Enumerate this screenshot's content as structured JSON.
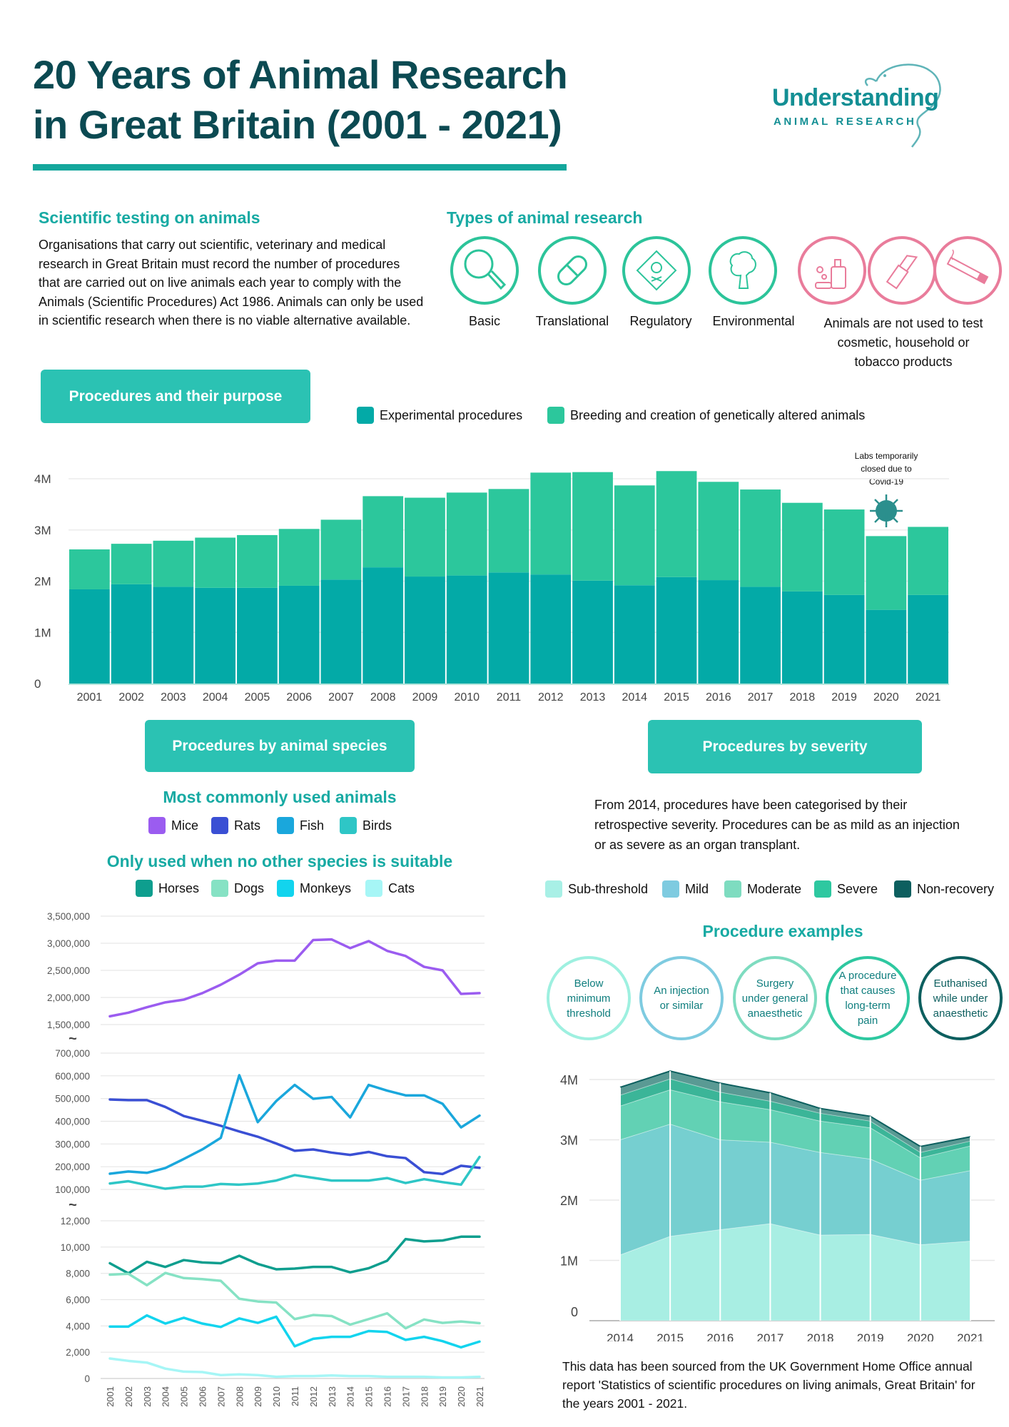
{
  "header": {
    "title_line1": "20 Years of Animal Research",
    "title_line2": "in Great Britain (2001 - 2021)",
    "logo_main": "Understanding",
    "logo_sub": "ANIMAL RESEARCH"
  },
  "intro": {
    "heading": "Scientific testing on animals",
    "text": "Organisations that carry out scientific, veterinary and medical research in Great Britain must record the number of procedures that are carried out on live animals each year to comply with the Animals (Scientific Procedures) Act 1986. Animals can only be used in scientific research when there is no viable alternative available."
  },
  "types": {
    "heading": "Types of animal research",
    "items": [
      {
        "label": "Basic",
        "icon": "magnifying-glass"
      },
      {
        "label": "Translational",
        "icon": "pill-capsule"
      },
      {
        "label": "Regulatory",
        "icon": "toxic-hazard"
      },
      {
        "label": "Environmental",
        "icon": "tree"
      }
    ],
    "not_used_text": "Animals are not used to test cosmetic, household or tobacco products",
    "not_used_icons": [
      "cosmetics-bottle",
      "lipstick",
      "cigarette"
    ],
    "colors": {
      "used": "#2cc49a",
      "not_used": "#e97c9b"
    }
  },
  "purpose": {
    "button": "Procedures and their purpose",
    "legend": [
      {
        "label": "Experimental procedures",
        "color": "#03aaa7"
      },
      {
        "label": "Breeding and creation of genetically altered animals",
        "color": "#2cc79c"
      }
    ],
    "annotation": [
      "Labs temporarily",
      "closed due to",
      "Covid-19"
    ],
    "annotation_icon": "virus"
  },
  "species": {
    "button": "Procedures by animal species",
    "common_heading": "Most commonly used animals",
    "common_legend": [
      {
        "label": "Mice",
        "color": "#9b5cf0"
      },
      {
        "label": "Rats",
        "color": "#3a4fd4"
      },
      {
        "label": "Fish",
        "color": "#1aa7dc"
      },
      {
        "label": "Birds",
        "color": "#2ec6c6"
      }
    ],
    "rare_heading": "Only used when no other species is suitable",
    "rare_legend": [
      {
        "label": "Horses",
        "color": "#0e9e8e"
      },
      {
        "label": "Dogs",
        "color": "#86e2c4"
      },
      {
        "label": "Monkeys",
        "color": "#12d4ee"
      },
      {
        "label": "Cats",
        "color": "#a6f6f6"
      }
    ]
  },
  "severity": {
    "button": "Procedures by severity",
    "text": "From 2014, procedures have been categorised by their retrospective severity. Procedures can be as mild as an injection or as severe as an organ transplant.",
    "legend": [
      {
        "label": "Sub-threshold",
        "color": "#a8f0e6"
      },
      {
        "label": "Mild",
        "color": "#7ecbe0"
      },
      {
        "label": "Moderate",
        "color": "#7edcc0"
      },
      {
        "label": "Severe",
        "color": "#2ec8a0"
      },
      {
        "label": "Non-recovery",
        "color": "#0d5f5f"
      }
    ],
    "examples_heading": "Procedure examples",
    "examples": [
      {
        "text": "Below minimum threshold",
        "color": "#9ef0e0"
      },
      {
        "text": "An injection or similar",
        "color": "#7ecbe0"
      },
      {
        "text": "Surgery under general anaesthetic",
        "color": "#7edcc0"
      },
      {
        "text": "A procedure that causes long-term pain",
        "color": "#2ec8a0"
      },
      {
        "text": "Euthanised while under anaesthetic",
        "color": "#0d5f5f"
      }
    ]
  },
  "source": "This data has been sourced from the UK Government Home Office annual report 'Statistics of scientific procedures on living animals, Great Britain' for the years 2001 - 2021.",
  "chart_data": [
    {
      "type": "bar",
      "stacked": true,
      "categories": [
        "2001",
        "2002",
        "2003",
        "2004",
        "2005",
        "2006",
        "2007",
        "2008",
        "2009",
        "2010",
        "2011",
        "2012",
        "2013",
        "2014",
        "2015",
        "2016",
        "2017",
        "2018",
        "2019",
        "2020",
        "2021"
      ],
      "ytick_labels": [
        "0",
        "1M",
        "2M",
        "3M",
        "4M"
      ],
      "yticks": [
        0,
        1000000,
        2000000,
        3000000,
        4000000
      ],
      "ylim": [
        0,
        4300000
      ],
      "grid": true,
      "legend": "top",
      "series": [
        {
          "name": "Experimental procedures",
          "color": "#03aaa7",
          "values": [
            1840000,
            1940000,
            1890000,
            1870000,
            1870000,
            1910000,
            2030000,
            2270000,
            2090000,
            2110000,
            2170000,
            2130000,
            2010000,
            1920000,
            2080000,
            2020000,
            1890000,
            1800000,
            1730000,
            1440000,
            1730000
          ]
        },
        {
          "name": "Breeding and creation of genetically altered animals",
          "color": "#2cc79c",
          "values": [
            780000,
            790000,
            900000,
            980000,
            1030000,
            1110000,
            1170000,
            1390000,
            1540000,
            1620000,
            1630000,
            1990000,
            2120000,
            1950000,
            2070000,
            1920000,
            1900000,
            1730000,
            1670000,
            1440000,
            1330000
          ]
        }
      ]
    },
    {
      "type": "line",
      "broken_axis": true,
      "x": [
        "2001",
        "2002",
        "2003",
        "2004",
        "2005",
        "2006",
        "2007",
        "2008",
        "2009",
        "2010",
        "2011",
        "2012",
        "2013",
        "2014",
        "2015",
        "2016",
        "2017",
        "2018",
        "2019",
        "2020",
        "2021"
      ],
      "segments": [
        {
          "ylim": [
            1500000,
            3500000
          ],
          "ytick_labels": [
            "1,500,000",
            "2,000,000",
            "2,500,000",
            "3,000,000",
            "3,500,000"
          ],
          "yticks": [
            1500000,
            2000000,
            2500000,
            3000000,
            3500000
          ]
        },
        {
          "ylim": [
            100000,
            700000
          ],
          "ytick_labels": [
            "100,000",
            "200,000",
            "300,000",
            "400,000",
            "500,000",
            "600,000",
            "700,000"
          ],
          "yticks": [
            100000,
            200000,
            300000,
            400000,
            500000,
            600000,
            700000
          ]
        },
        {
          "ylim": [
            0,
            12000
          ],
          "ytick_labels": [
            "0",
            "2,000",
            "4,000",
            "6,000",
            "8,000",
            "10,000",
            "12,000"
          ],
          "yticks": [
            0,
            2000,
            4000,
            6000,
            8000,
            10000,
            12000
          ]
        }
      ],
      "axis_break_symbol": "~",
      "series": [
        {
          "name": "Mice",
          "segment": 0,
          "color": "#9b5cf0",
          "values": [
            1653000,
            1720000,
            1820000,
            1910000,
            1960000,
            2080000,
            2235000,
            2420000,
            2630000,
            2680000,
            2680000,
            3060000,
            3070000,
            2910000,
            3040000,
            2860000,
            2765000,
            2565000,
            2500000,
            2065000,
            2080000
          ]
        },
        {
          "name": "Rats",
          "segment": 1,
          "color": "#3a4fd4",
          "values": [
            496000,
            493000,
            493000,
            463000,
            423000,
            402000,
            380000,
            355000,
            332000,
            302000,
            270000,
            276000,
            262000,
            252000,
            265000,
            246000,
            238000,
            176000,
            168000,
            204000,
            195000
          ]
        },
        {
          "name": "Fish",
          "segment": 1,
          "color": "#1aa7dc",
          "values": [
            169000,
            179000,
            173000,
            194000,
            234000,
            276000,
            327000,
            603000,
            396000,
            489000,
            560000,
            499000,
            507000,
            417000,
            560000,
            535000,
            514000,
            514000,
            477000,
            373000,
            425000
          ]
        },
        {
          "name": "Birds",
          "segment": 1,
          "color": "#2ec6c6",
          "values": [
            126000,
            136000,
            119000,
            103000,
            112000,
            112000,
            124000,
            121000,
            126000,
            139000,
            163000,
            151000,
            139000,
            139000,
            139000,
            150000,
            128000,
            145000,
            132000,
            121000,
            243000
          ]
        },
        {
          "name": "Horses",
          "segment": 2,
          "color": "#0e9e8e",
          "values": [
            8770,
            8000,
            8880,
            8490,
            9010,
            8830,
            8770,
            9340,
            8720,
            8310,
            8360,
            8490,
            8490,
            8080,
            8390,
            8960,
            10610,
            10430,
            10500,
            10790,
            10790
          ]
        },
        {
          "name": "Dogs",
          "segment": 2,
          "color": "#86e2c4",
          "values": [
            7900,
            7970,
            7100,
            8030,
            7640,
            7560,
            7430,
            6070,
            5860,
            5780,
            4520,
            4830,
            4750,
            4100,
            4520,
            4960,
            3820,
            4490,
            4230,
            4340,
            4210
          ]
        },
        {
          "name": "Monkeys",
          "segment": 2,
          "color": "#12d4ee",
          "values": [
            3950,
            3950,
            4800,
            4180,
            4620,
            4180,
            3920,
            4570,
            4230,
            4700,
            2450,
            3020,
            3170,
            3170,
            3610,
            3540,
            2940,
            3170,
            2840,
            2370,
            2810
          ]
        },
        {
          "name": "Cats",
          "segment": 2,
          "color": "#a6f6f6",
          "values": [
            1520,
            1340,
            1210,
            750,
            520,
            490,
            260,
            310,
            260,
            130,
            180,
            180,
            230,
            180,
            180,
            130,
            130,
            130,
            80,
            80,
            130
          ]
        }
      ]
    },
    {
      "type": "area",
      "stacked": true,
      "x": [
        "2014",
        "2015",
        "2016",
        "2017",
        "2018",
        "2019",
        "2020",
        "2021"
      ],
      "ytick_labels": [
        "0",
        "1M",
        "2M",
        "3M",
        "4M"
      ],
      "yticks": [
        0,
        1000000,
        2000000,
        3000000,
        4000000
      ],
      "ylim": [
        0,
        4300000
      ],
      "grid": true,
      "series": [
        {
          "name": "Sub-threshold",
          "color": "#a8eee3",
          "values": [
            1090000,
            1400000,
            1510000,
            1610000,
            1420000,
            1430000,
            1260000,
            1320000
          ]
        },
        {
          "name": "Mild",
          "color": "#76cfd0",
          "values": [
            1910000,
            1860000,
            1490000,
            1350000,
            1370000,
            1250000,
            1070000,
            1170000
          ]
        },
        {
          "name": "Moderate",
          "color": "#62d1b4",
          "values": [
            560000,
            570000,
            630000,
            540000,
            520000,
            520000,
            370000,
            410000
          ]
        },
        {
          "name": "Severe",
          "color": "#3bb598",
          "values": [
            180000,
            180000,
            160000,
            140000,
            130000,
            110000,
            90000,
            80000
          ]
        },
        {
          "name": "Non-recovery",
          "color": "#5a9a94",
          "values": [
            130000,
            130000,
            150000,
            140000,
            80000,
            80000,
            100000,
            70000
          ]
        }
      ]
    }
  ]
}
